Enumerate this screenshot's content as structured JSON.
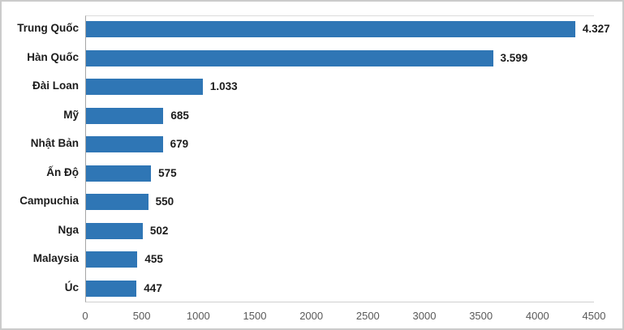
{
  "chart_data": {
    "type": "bar",
    "orientation": "horizontal",
    "title": "",
    "xlabel": "",
    "ylabel": "",
    "legend_position": "none",
    "grid": "off",
    "categories": [
      "Trung Quốc",
      "Hàn Quốc",
      "Đài Loan",
      "Mỹ",
      "Nhật Bản",
      "Ấn Độ",
      "Campuchia",
      "Nga",
      "Malaysia",
      "Úc"
    ],
    "values": [
      4327,
      3599,
      1033,
      685,
      679,
      575,
      550,
      502,
      455,
      447
    ],
    "value_labels": [
      "4.327",
      "3.599",
      "1.033",
      "685",
      "679",
      "575",
      "550",
      "502",
      "455",
      "447"
    ],
    "x_ticks": [
      "0",
      "500",
      "1000",
      "1500",
      "2000",
      "2500",
      "3000",
      "3500",
      "4000",
      "4500"
    ],
    "x_tick_values": [
      0,
      500,
      1000,
      1500,
      2000,
      2500,
      3000,
      3500,
      4000,
      4500
    ],
    "xlim": [
      0,
      4500
    ],
    "bar_color": "#2f76b5",
    "label_color": "#1c1c1c",
    "tick_color": "#595959"
  }
}
